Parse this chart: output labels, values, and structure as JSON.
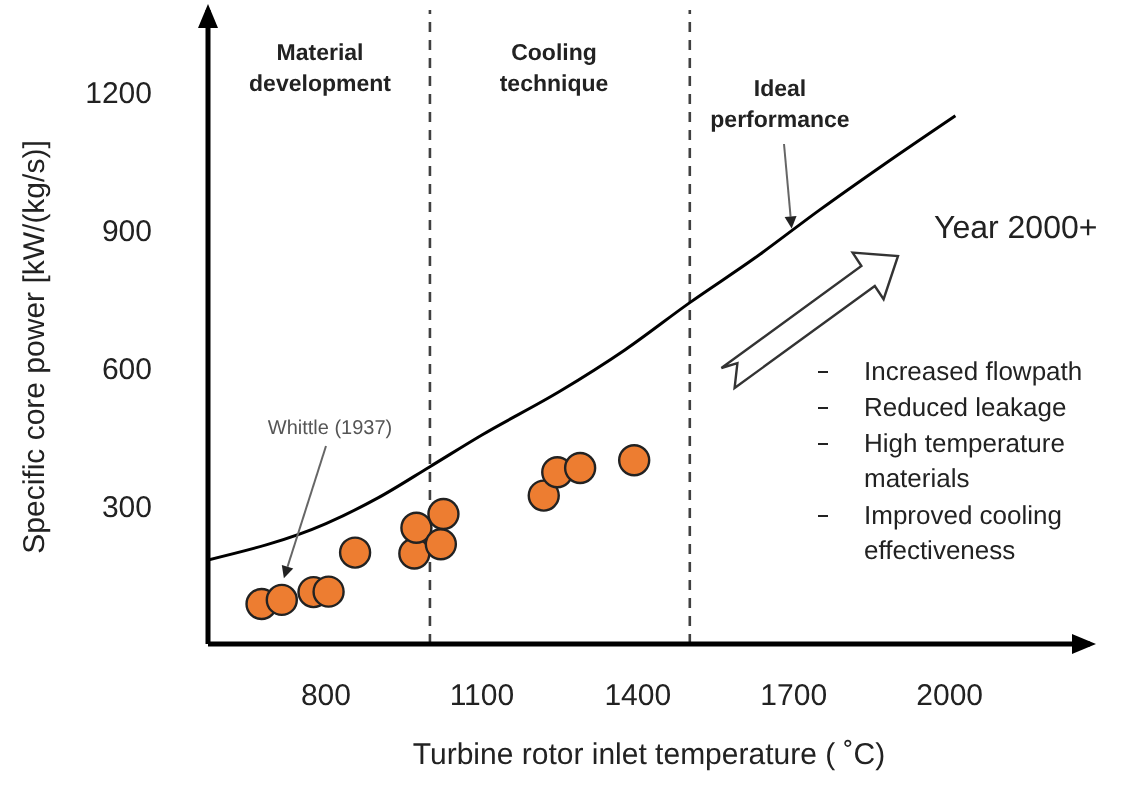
{
  "chart_data": {
    "type": "scatter",
    "xlabel": "Turbine rotor inlet temperature ( ˚C)",
    "ylabel": "Specific core power [kW/(kg/s)]",
    "xlim": [
      573,
      2270
    ],
    "xticks": [
      800,
      1100,
      1400,
      1700,
      2000
    ],
    "ylim": [
      0,
      1380
    ],
    "yticks": [
      300,
      600,
      900,
      1200
    ],
    "series": [
      {
        "color": "#ed7d31",
        "marker": "circle",
        "x": [
          676,
          715,
          776,
          805,
          856,
          970,
          974,
          1021,
          1026,
          1219,
          1245,
          1289,
          1393
        ],
        "values": [
          87,
          96,
          113,
          114,
          199,
          197,
          253,
          217,
          283,
          323,
          374,
          383,
          400
        ]
      },
      {
        "type": "line",
        "color": "#000000",
        "marker": "none",
        "line_style": "solid",
        "x": [
          573,
          800,
          900,
          1000,
          1100,
          1250,
          1375,
          1500,
          1625,
          1750,
          1875,
          2011
        ],
        "values": [
          183,
          262,
          318,
          386,
          455,
          550,
          640,
          743,
          840,
          945,
          1045,
          1150
        ]
      }
    ],
    "ref_lines": [
      {
        "axis": "x",
        "value": 1000,
        "color": "#404040",
        "line_style": "dashed"
      },
      {
        "axis": "x",
        "value": 1500,
        "color": "#404040",
        "line_style": "dashed"
      }
    ],
    "annotations": [
      "Material development",
      "Cooling technique",
      {
        "text": "Ideal performance",
        "x": 1696,
        "y": 900
      },
      {
        "text": "Whittle (1937)",
        "x": 719,
        "y": 139
      },
      "Year 2000+",
      "Increased flowpath",
      "Reduced leakage",
      "High temperature materials",
      "Improved cooling effectiveness"
    ]
  }
}
